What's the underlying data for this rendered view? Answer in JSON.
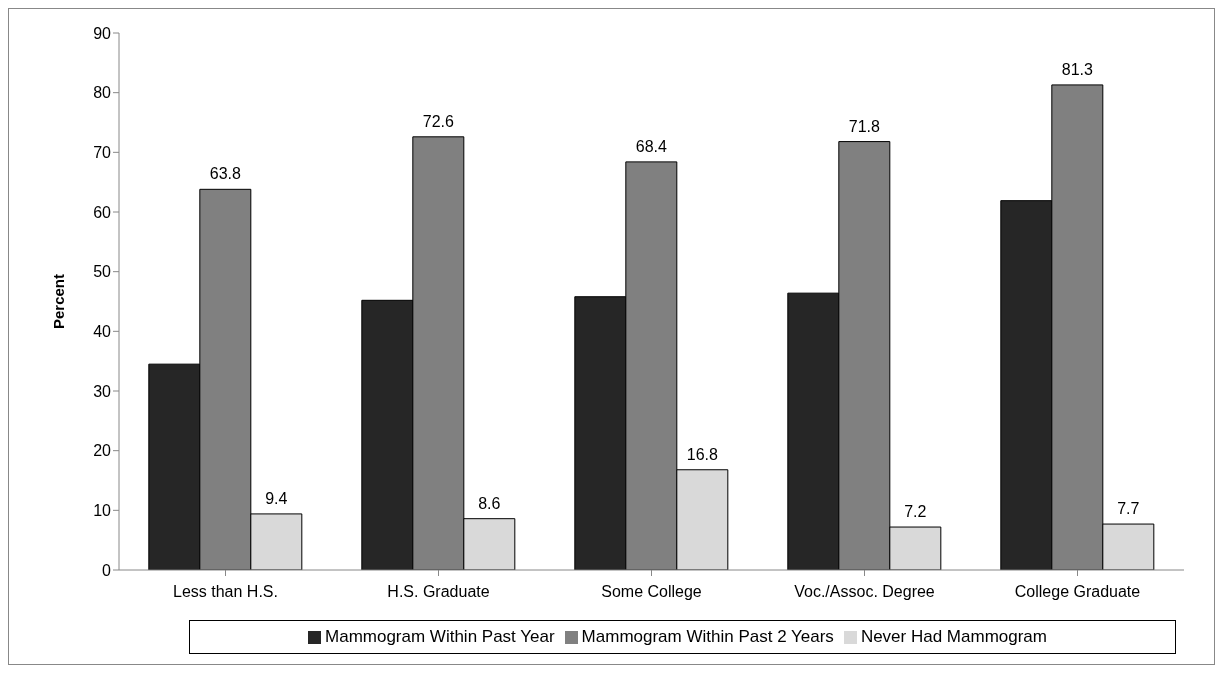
{
  "chart_data": {
    "type": "bar",
    "ylabel": "Percent",
    "categories": [
      "Less than H.S.",
      "H.S. Graduate",
      "Some College",
      "Voc./Assoc. Degree",
      "College Graduate"
    ],
    "series": [
      {
        "name": "Mammogram Within Past Year",
        "color": "#262626",
        "values": [
          34.5,
          45.2,
          45.8,
          46.4,
          61.9
        ]
      },
      {
        "name": "Mammogram Within Past 2 Years",
        "color": "#808080",
        "values": [
          63.8,
          72.6,
          68.4,
          71.8,
          81.3
        ],
        "value_labels": [
          "63.8",
          "72.6",
          "68.4",
          "71.8",
          "81.3"
        ]
      },
      {
        "name": "Never Had Mammogram",
        "color": "#d9d9d9",
        "values": [
          9.4,
          8.6,
          16.8,
          7.2,
          7.7
        ],
        "value_labels": [
          "9.4",
          "8.6",
          "16.8",
          "7.2",
          "7.7"
        ]
      }
    ],
    "ylim": [
      0,
      90
    ],
    "yticks": [
      0,
      10,
      20,
      30,
      40,
      50,
      60,
      70,
      80,
      90
    ],
    "grid": false,
    "legend": "bottom"
  }
}
